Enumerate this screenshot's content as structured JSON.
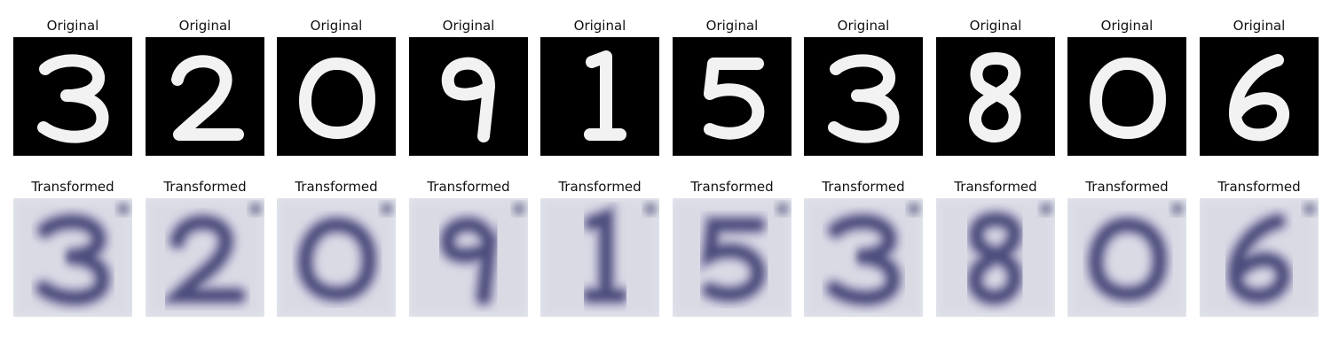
{
  "rows": [
    {
      "kind": "original",
      "panels": [
        {
          "title": "Original",
          "digit": "3"
        },
        {
          "title": "Original",
          "digit": "2"
        },
        {
          "title": "Original",
          "digit": "0"
        },
        {
          "title": "Original",
          "digit": "9"
        },
        {
          "title": "Original",
          "digit": "1"
        },
        {
          "title": "Original",
          "digit": "5"
        },
        {
          "title": "Original",
          "digit": "3"
        },
        {
          "title": "Original",
          "digit": "8"
        },
        {
          "title": "Original",
          "digit": "0"
        },
        {
          "title": "Original",
          "digit": "6"
        }
      ]
    },
    {
      "kind": "transformed",
      "panels": [
        {
          "title": "Transformed",
          "digit": "3"
        },
        {
          "title": "Transformed",
          "digit": "2"
        },
        {
          "title": "Transformed",
          "digit": "0"
        },
        {
          "title": "Transformed",
          "digit": "9"
        },
        {
          "title": "Transformed",
          "digit": "1"
        },
        {
          "title": "Transformed",
          "digit": "5"
        },
        {
          "title": "Transformed",
          "digit": "3"
        },
        {
          "title": "Transformed",
          "digit": "8"
        },
        {
          "title": "Transformed",
          "digit": "0"
        },
        {
          "title": "Transformed",
          "digit": "6"
        }
      ]
    }
  ],
  "colors": {
    "original_background": "#000000",
    "original_stroke": "#f2f2f2",
    "transformed_background": "#e4e8ee",
    "transformed_stroke": "#3a3a6e",
    "title_text": "#111111"
  }
}
